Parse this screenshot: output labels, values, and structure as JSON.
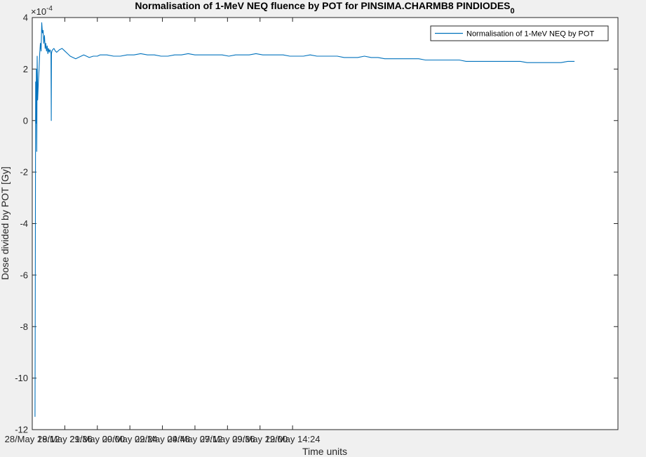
{
  "chart_data": {
    "type": "line",
    "title_main": "Normalisation of 1-MeV NEQ fluence by POT for PINSIMA.CHARMB8 PINDIODES",
    "title_subscript": "0",
    "xlabel": "Time units",
    "ylabel": "Dose divided by POT [Gy]",
    "y_exponent_label": "×10",
    "y_exponent_power": "-4",
    "x_is_time": true,
    "xlim_hours": [
      0,
      43.2
    ],
    "x_tick_hours": [
      0,
      2.4,
      4.8,
      7.2,
      9.6,
      12.0,
      14.4,
      16.8,
      19.2
    ],
    "x_tick_labels": [
      "28/May 19:12",
      "28/May 21:36",
      "29/May 00:00",
      "29/May 02:24",
      "29/May 04:48",
      "29/May 07:12",
      "29/May 09:36",
      "29/May 12:00",
      "29/May 14:24"
    ],
    "ylim": [
      -12,
      4
    ],
    "y_ticks": [
      -12,
      -10,
      -8,
      -6,
      -4,
      -2,
      0,
      2,
      4
    ],
    "y_tick_labels": [
      "-12",
      "-10",
      "-8",
      "-6",
      "-4",
      "-2",
      "0",
      "2",
      "4"
    ],
    "grid": false,
    "legend_position": "top-right",
    "line_color": "#0072bd",
    "series": [
      {
        "name": "Normalisation of 1-MeV NEQ by POT",
        "x_hours": [
          0.2,
          0.22,
          0.25,
          0.28,
          0.3,
          0.33,
          0.36,
          0.4,
          0.45,
          0.5,
          0.55,
          0.6,
          0.65,
          0.7,
          0.75,
          0.8,
          0.85,
          0.9,
          0.95,
          1.0,
          1.05,
          1.1,
          1.15,
          1.2,
          1.25,
          1.3,
          1.35,
          1.38,
          1.4,
          1.42,
          1.45,
          1.5,
          1.6,
          1.7,
          1.8,
          2.0,
          2.2,
          2.4,
          2.6,
          2.8,
          3.0,
          3.2,
          3.4,
          3.6,
          3.8,
          4.0,
          4.2,
          4.5,
          4.8,
          5.0,
          5.5,
          6.0,
          6.5,
          7.0,
          7.5,
          8.0,
          8.5,
          9.0,
          9.5,
          10.0,
          10.5,
          11.0,
          11.5,
          12.0,
          12.5,
          13.0,
          13.5,
          14.0,
          14.5,
          15.0,
          15.5,
          16.0,
          16.5,
          17.0,
          17.5,
          18.0,
          18.5,
          19.0,
          19.5,
          20.0,
          20.5,
          21.0,
          21.5,
          22.0,
          22.5,
          23.0,
          23.5,
          24.0,
          24.5,
          25.0,
          25.5,
          26.0,
          26.5,
          27.0,
          27.5,
          28.0,
          28.5,
          29.0,
          29.5,
          30.0,
          30.5,
          31.0,
          31.5,
          32.0,
          32.5,
          33.0,
          33.5,
          34.0,
          34.5,
          35.0,
          35.5,
          36.0,
          36.5,
          37.0,
          37.5,
          38.0,
          38.5,
          39.0,
          39.5,
          40.0
        ],
        "values": [
          -11.5,
          -6.5,
          1.5,
          -0.1,
          2.0,
          -1.2,
          2.5,
          0.8,
          1.5,
          2.0,
          2.6,
          3.0,
          2.7,
          3.8,
          3.4,
          3.5,
          3.0,
          3.3,
          2.8,
          3.0,
          2.7,
          2.9,
          2.6,
          2.8,
          2.65,
          2.75,
          2.7,
          2.6,
          0.0,
          2.6,
          2.7,
          2.75,
          2.8,
          2.7,
          2.65,
          2.75,
          2.8,
          2.7,
          2.6,
          2.5,
          2.45,
          2.4,
          2.45,
          2.5,
          2.55,
          2.5,
          2.45,
          2.5,
          2.5,
          2.55,
          2.55,
          2.5,
          2.5,
          2.55,
          2.55,
          2.6,
          2.55,
          2.55,
          2.5,
          2.5,
          2.55,
          2.55,
          2.6,
          2.55,
          2.55,
          2.55,
          2.55,
          2.55,
          2.5,
          2.55,
          2.55,
          2.55,
          2.6,
          2.55,
          2.55,
          2.55,
          2.55,
          2.5,
          2.5,
          2.5,
          2.55,
          2.5,
          2.5,
          2.5,
          2.5,
          2.45,
          2.45,
          2.45,
          2.5,
          2.45,
          2.45,
          2.4,
          2.4,
          2.4,
          2.4,
          2.4,
          2.4,
          2.35,
          2.35,
          2.35,
          2.35,
          2.35,
          2.35,
          2.3,
          2.3,
          2.3,
          2.3,
          2.3,
          2.3,
          2.3,
          2.3,
          2.3,
          2.25,
          2.25,
          2.25,
          2.25,
          2.25,
          2.25,
          2.3,
          2.3
        ]
      }
    ]
  }
}
